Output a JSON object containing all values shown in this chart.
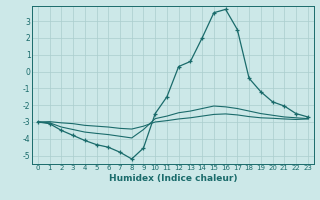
{
  "xlabel": "Humidex (Indice chaleur)",
  "ylabel": "",
  "background_color": "#cce8e8",
  "grid_color": "#aacece",
  "line_color": "#1a6b6b",
  "xlim": [
    -0.5,
    23.5
  ],
  "ylim": [
    -5.5,
    3.9
  ],
  "yticks": [
    3,
    2,
    1,
    0,
    -1,
    -2,
    -3,
    -4,
    -5
  ],
  "xticks": [
    0,
    1,
    2,
    3,
    4,
    5,
    6,
    7,
    8,
    9,
    10,
    11,
    12,
    13,
    14,
    15,
    16,
    17,
    18,
    19,
    20,
    21,
    22,
    23
  ],
  "line1_x": [
    0,
    1,
    2,
    3,
    4,
    5,
    6,
    7,
    8,
    9,
    10,
    11,
    12,
    13,
    14,
    15,
    16,
    17,
    18,
    19,
    20,
    21,
    22,
    23
  ],
  "line1_y": [
    -3.0,
    -3.1,
    -3.5,
    -3.8,
    -4.1,
    -4.35,
    -4.5,
    -4.8,
    -5.2,
    -4.55,
    -2.5,
    -1.5,
    0.3,
    0.6,
    2.0,
    3.5,
    3.7,
    2.5,
    -0.4,
    -1.2,
    -1.8,
    -2.05,
    -2.5,
    -2.7
  ],
  "line2_x": [
    0,
    1,
    2,
    3,
    4,
    5,
    6,
    7,
    8,
    9,
    10,
    11,
    12,
    13,
    14,
    15,
    16,
    17,
    18,
    19,
    20,
    21,
    22,
    23
  ],
  "line2_y": [
    -3.0,
    -3.05,
    -3.3,
    -3.45,
    -3.6,
    -3.68,
    -3.75,
    -3.85,
    -3.95,
    -3.45,
    -2.8,
    -2.65,
    -2.45,
    -2.35,
    -2.2,
    -2.05,
    -2.1,
    -2.2,
    -2.35,
    -2.5,
    -2.6,
    -2.7,
    -2.75,
    -2.8
  ],
  "line3_x": [
    0,
    1,
    2,
    3,
    4,
    5,
    6,
    7,
    8,
    9,
    10,
    11,
    12,
    13,
    14,
    15,
    16,
    17,
    18,
    19,
    20,
    21,
    22,
    23
  ],
  "line3_y": [
    -3.0,
    -2.98,
    -3.05,
    -3.1,
    -3.2,
    -3.25,
    -3.3,
    -3.38,
    -3.42,
    -3.25,
    -3.0,
    -2.92,
    -2.82,
    -2.75,
    -2.65,
    -2.55,
    -2.52,
    -2.58,
    -2.68,
    -2.75,
    -2.78,
    -2.82,
    -2.85,
    -2.82
  ]
}
